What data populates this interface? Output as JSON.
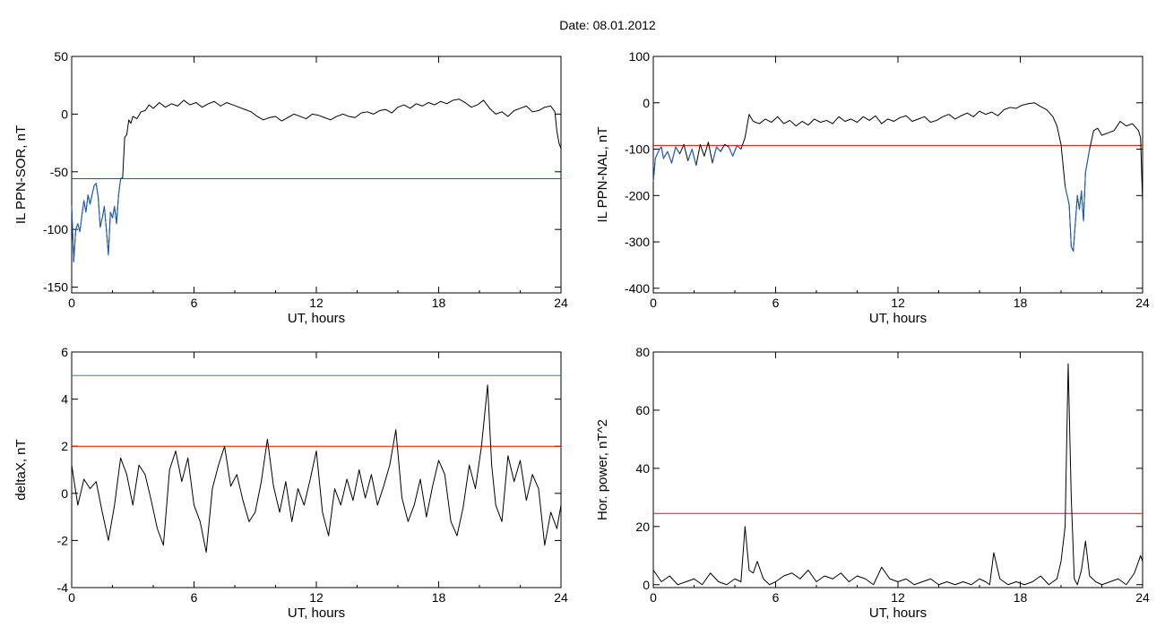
{
  "figure_title": "Date:  08.01.2012",
  "colors": {
    "line": "#000000",
    "threshold": "#ff0000",
    "highlight": "#1a5fc8",
    "upper_threshold": "#1a8fa8",
    "marker_red": "#e02020",
    "marker_green": "#20b020"
  },
  "chart_data": [
    {
      "type": "line",
      "xlabel": "UT, hours",
      "ylabel": "IL PPN-SOR, nT",
      "xlim": [
        0,
        24
      ],
      "ylim": [
        -155,
        50
      ],
      "xticks": [
        "0",
        "6",
        "12",
        "18",
        "24"
      ],
      "yticks": [
        "-150",
        "-100",
        "-50",
        "0",
        "50"
      ],
      "threshold": -56,
      "series": [
        {
          "x": [
            0,
            0.1,
            0.2,
            0.3,
            0.4,
            0.5,
            0.6,
            0.7,
            0.8,
            0.9,
            1.0,
            1.1,
            1.2,
            1.3,
            1.4,
            1.5,
            1.6,
            1.7,
            1.8,
            1.9,
            2.0,
            2.1,
            2.2,
            2.3,
            2.4,
            2.5,
            2.6,
            2.7,
            2.8,
            2.9,
            3.0,
            3.2,
            3.4,
            3.6,
            3.8,
            4.0,
            4.3,
            4.6,
            4.9,
            5.2,
            5.5,
            5.8,
            6.1,
            6.4,
            6.7,
            7.0,
            7.3,
            7.6,
            7.9,
            8.2,
            8.5,
            8.8,
            9.1,
            9.4,
            9.7,
            10.0,
            10.3,
            10.6,
            10.9,
            11.2,
            11.5,
            11.8,
            12.1,
            12.4,
            12.7,
            13.0,
            13.3,
            13.6,
            13.9,
            14.2,
            14.5,
            14.8,
            15.1,
            15.4,
            15.7,
            16.0,
            16.3,
            16.6,
            16.9,
            17.2,
            17.5,
            17.8,
            18.1,
            18.4,
            18.7,
            19.0,
            19.3,
            19.6,
            19.9,
            20.2,
            20.5,
            20.8,
            21.1,
            21.4,
            21.7,
            22.0,
            22.3,
            22.6,
            22.9,
            23.2,
            23.5,
            23.7,
            23.8,
            23.9,
            24.0
          ],
          "values": [
            -80,
            -128,
            -100,
            -95,
            -102,
            -88,
            -75,
            -85,
            -70,
            -78,
            -70,
            -62,
            -60,
            -72,
            -98,
            -90,
            -80,
            -100,
            -122,
            -85,
            -90,
            -80,
            -95,
            -70,
            -56,
            -55,
            -20,
            -18,
            -5,
            -8,
            -2,
            -4,
            2,
            3,
            8,
            5,
            10,
            6,
            9,
            7,
            12,
            8,
            10,
            6,
            9,
            11,
            7,
            10,
            8,
            6,
            4,
            2,
            -2,
            -5,
            -3,
            -2,
            -6,
            -3,
            0,
            -2,
            -4,
            0,
            -1,
            -3,
            -5,
            -2,
            0,
            -2,
            -3,
            1,
            2,
            0,
            3,
            4,
            1,
            6,
            8,
            5,
            9,
            7,
            10,
            8,
            11,
            9,
            12,
            13,
            10,
            6,
            8,
            12,
            5,
            0,
            2,
            -2,
            3,
            5,
            7,
            2,
            3,
            6,
            7,
            2,
            -15,
            -25,
            -30
          ]
        }
      ]
    },
    {
      "type": "line",
      "xlabel": "UT, hours",
      "ylabel": "IL PPN-NAL, nT",
      "xlim": [
        0,
        24
      ],
      "ylim": [
        -410,
        100
      ],
      "xticks": [
        "0",
        "6",
        "12",
        "18",
        "24"
      ],
      "yticks": [
        "-400",
        "-300",
        "-200",
        "-100",
        "0",
        "100"
      ],
      "threshold": -92,
      "series": [
        {
          "x": [
            0,
            0.1,
            0.2,
            0.3,
            0.4,
            0.5,
            0.7,
            0.9,
            1.1,
            1.3,
            1.5,
            1.7,
            1.9,
            2.1,
            2.3,
            2.5,
            2.7,
            2.9,
            3.1,
            3.3,
            3.5,
            3.7,
            3.9,
            4.1,
            4.3,
            4.5,
            4.7,
            4.9,
            5.2,
            5.5,
            5.8,
            6.1,
            6.4,
            6.7,
            7.0,
            7.3,
            7.6,
            7.9,
            8.2,
            8.5,
            8.8,
            9.1,
            9.4,
            9.7,
            10.0,
            10.3,
            10.6,
            10.9,
            11.2,
            11.5,
            11.8,
            12.1,
            12.4,
            12.7,
            13.0,
            13.3,
            13.6,
            13.9,
            14.2,
            14.5,
            14.8,
            15.1,
            15.4,
            15.7,
            16.0,
            16.3,
            16.6,
            16.9,
            17.2,
            17.5,
            17.8,
            18.1,
            18.4,
            18.7,
            19.0,
            19.3,
            19.6,
            19.8,
            20.0,
            20.2,
            20.4,
            20.5,
            20.6,
            20.7,
            20.8,
            20.9,
            21.0,
            21.1,
            21.2,
            21.4,
            21.6,
            21.8,
            22.0,
            22.3,
            22.6,
            22.9,
            23.2,
            23.5,
            23.8,
            23.9,
            24.0
          ],
          "values": [
            -170,
            -120,
            -110,
            -100,
            -95,
            -120,
            -105,
            -130,
            -95,
            -110,
            -90,
            -125,
            -100,
            -135,
            -90,
            -115,
            -85,
            -130,
            -95,
            -105,
            -90,
            -95,
            -115,
            -92,
            -100,
            -75,
            -25,
            -40,
            -45,
            -35,
            -42,
            -30,
            -45,
            -38,
            -50,
            -40,
            -48,
            -35,
            -42,
            -38,
            -45,
            -30,
            -40,
            -35,
            -42,
            -30,
            -38,
            -28,
            -45,
            -35,
            -40,
            -32,
            -28,
            -40,
            -35,
            -30,
            -42,
            -38,
            -30,
            -25,
            -35,
            -28,
            -22,
            -30,
            -18,
            -25,
            -20,
            -28,
            -15,
            -10,
            -12,
            -5,
            -2,
            0,
            -8,
            -15,
            -30,
            -50,
            -90,
            -180,
            -220,
            -310,
            -320,
            -260,
            -200,
            -230,
            -190,
            -255,
            -150,
            -100,
            -60,
            -55,
            -70,
            -65,
            -60,
            -40,
            -50,
            -45,
            -60,
            -75,
            -215
          ]
        }
      ]
    },
    {
      "type": "line",
      "xlabel": "UT, hours",
      "ylabel": "deltaX, nT",
      "xlim": [
        0,
        24
      ],
      "ylim": [
        -4,
        6
      ],
      "xticks": [
        "0",
        "6",
        "12",
        "18",
        "24"
      ],
      "yticks": [
        "-4",
        "-2",
        "0",
        "2",
        "4",
        "6"
      ],
      "threshold": 2,
      "upper_threshold": 5,
      "series": [
        {
          "x": [
            0,
            0.3,
            0.6,
            0.9,
            1.2,
            1.5,
            1.8,
            2.1,
            2.4,
            2.7,
            3.0,
            3.3,
            3.6,
            3.9,
            4.2,
            4.5,
            4.8,
            5.1,
            5.4,
            5.7,
            6.0,
            6.3,
            6.6,
            6.9,
            7.2,
            7.5,
            7.8,
            8.1,
            8.4,
            8.7,
            9.0,
            9.3,
            9.6,
            9.9,
            10.2,
            10.5,
            10.8,
            11.1,
            11.4,
            11.7,
            12.0,
            12.3,
            12.6,
            12.9,
            13.2,
            13.5,
            13.8,
            14.1,
            14.4,
            14.7,
            15.0,
            15.3,
            15.6,
            15.9,
            16.2,
            16.5,
            16.8,
            17.1,
            17.4,
            17.7,
            18.0,
            18.3,
            18.6,
            18.9,
            19.2,
            19.5,
            19.8,
            20.1,
            20.4,
            20.6,
            20.8,
            21.1,
            21.4,
            21.7,
            22.0,
            22.3,
            22.6,
            22.9,
            23.2,
            23.5,
            23.8,
            24.0
          ],
          "values": [
            1.2,
            -0.5,
            0.6,
            0.2,
            0.5,
            -0.8,
            -2.0,
            -0.5,
            1.5,
            0.8,
            -0.5,
            1.2,
            0.8,
            -0.3,
            -1.5,
            -2.2,
            1.0,
            1.8,
            0.5,
            1.5,
            -0.5,
            -1.2,
            -2.5,
            0.2,
            1.2,
            2.0,
            0.3,
            0.8,
            -0.3,
            -1.2,
            -0.8,
            0.5,
            2.3,
            0.3,
            -0.8,
            0.5,
            -1.2,
            0.2,
            -0.5,
            0.6,
            1.8,
            -0.8,
            -1.8,
            0.2,
            -0.5,
            0.6,
            -0.3,
            1.0,
            -0.2,
            0.8,
            -0.5,
            0.3,
            1.2,
            2.7,
            -0.2,
            -1.2,
            -0.5,
            0.6,
            -1.0,
            0.3,
            1.4,
            0.8,
            -1.2,
            -1.8,
            -0.6,
            1.2,
            0.2,
            2.0,
            4.6,
            1.2,
            -0.5,
            -1.2,
            1.6,
            0.5,
            1.4,
            -0.3,
            0.8,
            0.2,
            -2.2,
            -0.8,
            -1.5,
            -0.5
          ]
        }
      ]
    },
    {
      "type": "line",
      "xlabel": "UT, hours",
      "ylabel": "Hor. power, nT^2",
      "xlim": [
        0,
        24
      ],
      "ylim": [
        -1,
        80
      ],
      "xticks": [
        "0",
        "6",
        "12",
        "18",
        "24"
      ],
      "yticks": [
        "0",
        "20",
        "40",
        "60",
        "80"
      ],
      "threshold": 24.5,
      "series": [
        {
          "x": [
            0,
            0.4,
            0.8,
            1.2,
            1.6,
            2.0,
            2.4,
            2.8,
            3.2,
            3.6,
            4.0,
            4.3,
            4.5,
            4.7,
            4.9,
            5.1,
            5.4,
            5.7,
            6.0,
            6.4,
            6.8,
            7.2,
            7.6,
            8.0,
            8.4,
            8.8,
            9.2,
            9.6,
            10.0,
            10.4,
            10.8,
            11.2,
            11.6,
            12.0,
            12.4,
            12.8,
            13.2,
            13.6,
            14.0,
            14.4,
            14.8,
            15.2,
            15.6,
            16.0,
            16.3,
            16.5,
            16.7,
            17.0,
            17.4,
            17.8,
            18.2,
            18.6,
            19.0,
            19.4,
            19.8,
            20.0,
            20.2,
            20.35,
            20.5,
            20.65,
            20.8,
            21.0,
            21.2,
            21.4,
            21.7,
            22.0,
            22.4,
            22.8,
            23.2,
            23.6,
            23.9,
            24.0
          ],
          "values": [
            5,
            1,
            3,
            0,
            1,
            2,
            0,
            4,
            1,
            0,
            2,
            1,
            20,
            5,
            4,
            8,
            2,
            0,
            1,
            3,
            4,
            2,
            5,
            1,
            3,
            2,
            4,
            1,
            3,
            2,
            0,
            6,
            2,
            1,
            2,
            0,
            1,
            2,
            0,
            1,
            0,
            1,
            0,
            2,
            1,
            0,
            11,
            2,
            0,
            1,
            0,
            1,
            3,
            0,
            2,
            8,
            20,
            76,
            30,
            2,
            0,
            5,
            15,
            3,
            1,
            0,
            1,
            2,
            0,
            4,
            10,
            8
          ]
        }
      ]
    }
  ]
}
